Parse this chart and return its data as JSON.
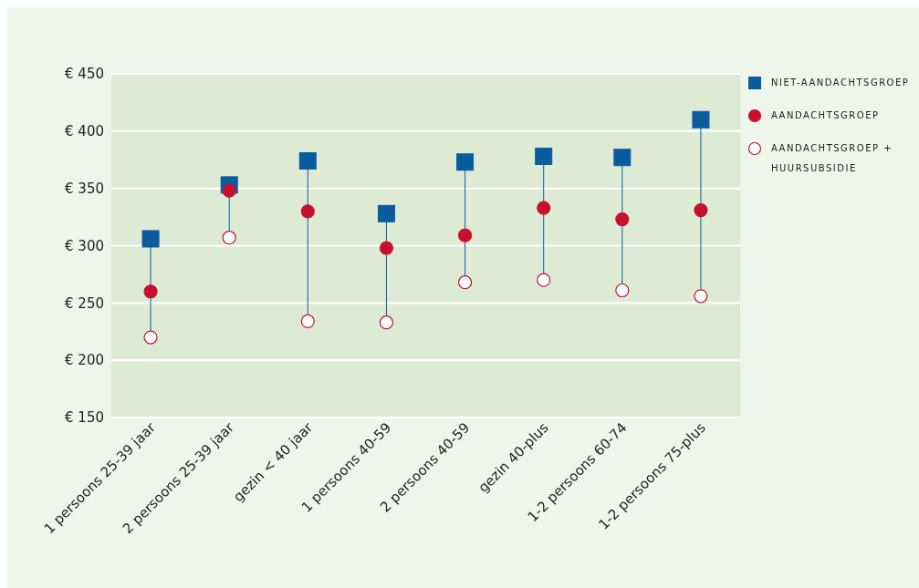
{
  "chart_data": {
    "type": "scatter",
    "categories": [
      "1 persoons 25-39 jaar",
      "2 persoons 25-39 jaar",
      "gezin < 40 jaar",
      "1 persoons 40-59",
      "2 persoons 40-59",
      "gezin 40-plus",
      "1-2 persoons 60-74",
      "1-2 persoons 75-plus"
    ],
    "series": [
      {
        "name": "NIET-AANDACHTSGROEP",
        "color": "#0b5c9e",
        "marker": "square",
        "values": [
          306,
          353,
          374,
          328,
          373,
          378,
          377,
          410
        ]
      },
      {
        "name": "AANDACHTSGROEP",
        "color": "#c8102e",
        "marker": "circle",
        "values": [
          260,
          348,
          330,
          298,
          309,
          333,
          323,
          331
        ]
      },
      {
        "name": "AANDACHTSGROEP + HUURSUBSIDIE",
        "color": "#c8102e",
        "marker": "circle",
        "values": [
          220,
          307,
          234,
          233,
          268,
          270,
          261,
          256
        ]
      }
    ],
    "ylim": [
      150,
      450
    ],
    "yticks": [
      {
        "value": 150,
        "label": "€ 150"
      },
      {
        "value": 200,
        "label": "€ 200"
      },
      {
        "value": 250,
        "label": "€ 250"
      },
      {
        "value": 300,
        "label": "€ 300"
      },
      {
        "value": 350,
        "label": "€ 350"
      },
      {
        "value": 400,
        "label": "€ 400"
      },
      {
        "value": 450,
        "label": "€ 450"
      }
    ],
    "grid": "y",
    "legend": "top right"
  }
}
